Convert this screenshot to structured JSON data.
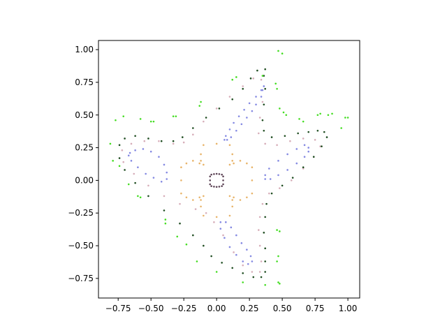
{
  "chart_data": {
    "type": "scatter",
    "title": "",
    "xlabel": "",
    "ylabel": "",
    "xlim": [
      -0.9,
      1.09
    ],
    "ylim": [
      -0.9,
      1.07
    ],
    "xticks": [
      -0.75,
      -0.5,
      -0.25,
      0.0,
      0.25,
      0.5,
      0.75,
      1.0
    ],
    "xtick_labels": [
      "−0.75",
      "−0.50",
      "−0.25",
      "0.00",
      "0.25",
      "0.50",
      "0.75",
      "1.00"
    ],
    "yticks": [
      -0.75,
      -0.5,
      -0.25,
      0.0,
      0.25,
      0.5,
      0.75,
      1.0
    ],
    "ytick_labels": [
      "−0.75",
      "−0.50",
      "−0.25",
      "0.00",
      "0.25",
      "0.50",
      "0.75",
      "1.00"
    ],
    "grid": false,
    "legend": "none",
    "series": [
      {
        "color": "#5c4355",
        "points": [
          [
            0.0,
            0.05
          ],
          [
            0.02,
            0.048
          ],
          [
            0.04,
            0.044
          ],
          [
            0.05,
            0.03
          ],
          [
            0.05,
            0.0
          ],
          [
            0.05,
            -0.03
          ],
          [
            0.04,
            -0.044
          ],
          [
            0.02,
            -0.048
          ],
          [
            0.0,
            -0.05
          ],
          [
            -0.02,
            -0.048
          ],
          [
            -0.04,
            -0.044
          ],
          [
            -0.05,
            -0.03
          ],
          [
            -0.05,
            0.0
          ],
          [
            -0.05,
            0.03
          ],
          [
            -0.04,
            0.044
          ],
          [
            -0.02,
            0.048
          ]
        ]
      },
      {
        "color": "#e8b46a",
        "points": [
          [
            -0.1,
            0.12
          ],
          [
            -0.13,
            0.13
          ],
          [
            -0.18,
            0.15
          ],
          [
            -0.23,
            0.13
          ],
          [
            -0.27,
            0.1
          ],
          [
            -0.27,
            0.0
          ],
          [
            -0.27,
            -0.1
          ],
          [
            -0.23,
            -0.13
          ],
          [
            -0.18,
            -0.15
          ],
          [
            -0.13,
            -0.13
          ],
          [
            -0.1,
            -0.12
          ],
          [
            -0.12,
            -0.15
          ],
          [
            -0.12,
            -0.2
          ],
          [
            -0.1,
            -0.27
          ],
          [
            0.0,
            -0.28
          ],
          [
            0.1,
            -0.27
          ],
          [
            0.12,
            -0.2
          ],
          [
            0.12,
            -0.15
          ],
          [
            0.1,
            -0.12
          ],
          [
            0.13,
            -0.13
          ],
          [
            0.18,
            -0.15
          ],
          [
            0.23,
            -0.13
          ],
          [
            0.27,
            -0.1
          ],
          [
            0.27,
            0.0
          ],
          [
            0.27,
            0.1
          ],
          [
            0.23,
            0.13
          ],
          [
            0.18,
            0.15
          ],
          [
            0.13,
            0.13
          ],
          [
            0.1,
            0.12
          ],
          [
            0.12,
            0.15
          ],
          [
            0.12,
            0.2
          ],
          [
            0.1,
            0.27
          ],
          [
            0.0,
            0.28
          ],
          [
            -0.1,
            0.27
          ],
          [
            -0.12,
            0.2
          ],
          [
            -0.12,
            0.15
          ]
        ]
      },
      {
        "color": "#8489e2",
        "points": [
          [
            0.36,
            0.72
          ],
          [
            0.34,
            0.69
          ],
          [
            0.3,
            0.64
          ],
          [
            0.25,
            0.59
          ],
          [
            0.21,
            0.54
          ],
          [
            0.17,
            0.49
          ],
          [
            0.13,
            0.44
          ],
          [
            0.1,
            0.39
          ],
          [
            0.07,
            0.34
          ],
          [
            0.06,
            0.31
          ],
          [
            0.08,
            0.31
          ],
          [
            0.11,
            0.33
          ],
          [
            0.15,
            0.38
          ],
          [
            0.19,
            0.43
          ],
          [
            0.23,
            0.48
          ],
          [
            0.27,
            0.53
          ],
          [
            0.3,
            0.58
          ],
          [
            0.34,
            0.64
          ],
          [
            0.35,
            0.69
          ],
          [
            0.36,
            0.72
          ],
          [
            -0.66,
            0.21
          ],
          [
            -0.62,
            0.23
          ],
          [
            -0.56,
            0.24
          ],
          [
            -0.5,
            0.22
          ],
          [
            -0.44,
            0.18
          ],
          [
            -0.4,
            0.12
          ],
          [
            -0.38,
            0.06
          ],
          [
            -0.38,
            0.01
          ],
          [
            -0.42,
            -0.01
          ],
          [
            -0.48,
            0.02
          ],
          [
            -0.54,
            0.05
          ],
          [
            -0.6,
            0.1
          ],
          [
            -0.65,
            0.15
          ],
          [
            -0.67,
            0.19
          ],
          [
            0.7,
            0.25
          ],
          [
            0.67,
            0.27
          ],
          [
            0.61,
            0.24
          ],
          [
            0.54,
            0.2
          ],
          [
            0.47,
            0.15
          ],
          [
            0.4,
            0.09
          ],
          [
            0.37,
            0.04
          ],
          [
            0.37,
            0.01
          ],
          [
            0.41,
            0.01
          ],
          [
            0.47,
            0.04
          ],
          [
            0.54,
            0.08
          ],
          [
            0.61,
            0.13
          ],
          [
            0.67,
            0.18
          ],
          [
            0.7,
            0.22
          ],
          [
            0.03,
            -0.32
          ],
          [
            0.07,
            -0.32
          ],
          [
            0.11,
            -0.36
          ],
          [
            0.15,
            -0.42
          ],
          [
            0.19,
            -0.48
          ],
          [
            0.23,
            -0.53
          ],
          [
            0.26,
            -0.58
          ],
          [
            0.27,
            -0.62
          ],
          [
            0.24,
            -0.64
          ],
          [
            0.2,
            -0.62
          ],
          [
            0.15,
            -0.57
          ],
          [
            0.1,
            -0.51
          ],
          [
            0.06,
            -0.44
          ],
          [
            0.03,
            -0.37
          ]
        ]
      },
      {
        "color": "#d7aeb9",
        "points": [
          [
            0.34,
            0.77
          ],
          [
            0.37,
            0.7
          ],
          [
            0.35,
            0.6
          ],
          [
            0.33,
            0.48
          ],
          [
            0.32,
            0.36
          ],
          [
            0.37,
            0.28
          ],
          [
            0.46,
            0.27
          ],
          [
            0.56,
            0.3
          ],
          [
            0.66,
            0.32
          ],
          [
            0.75,
            0.31
          ],
          [
            0.79,
            0.26
          ],
          [
            0.74,
            0.18
          ],
          [
            0.66,
            0.09
          ],
          [
            0.57,
            0.0
          ],
          [
            0.48,
            -0.06
          ],
          [
            0.4,
            -0.1
          ],
          [
            0.35,
            -0.18
          ],
          [
            0.33,
            -0.28
          ],
          [
            0.32,
            -0.38
          ],
          [
            0.33,
            -0.5
          ],
          [
            0.34,
            -0.62
          ],
          [
            0.33,
            -0.7
          ],
          [
            0.27,
            -0.7
          ],
          [
            0.2,
            -0.65
          ],
          [
            0.13,
            -0.55
          ],
          [
            0.05,
            -0.42
          ],
          [
            -0.02,
            -0.32
          ],
          [
            -0.08,
            -0.25
          ],
          [
            -0.16,
            -0.22
          ],
          [
            -0.28,
            -0.18
          ],
          [
            -0.4,
            -0.12
          ],
          [
            -0.52,
            -0.04
          ],
          [
            -0.63,
            0.05
          ],
          [
            -0.71,
            0.14
          ],
          [
            -0.72,
            0.23
          ],
          [
            -0.65,
            0.28
          ],
          [
            -0.55,
            0.3
          ],
          [
            -0.44,
            0.3
          ],
          [
            -0.33,
            0.28
          ],
          [
            -0.25,
            0.29
          ],
          [
            -0.18,
            0.35
          ],
          [
            -0.1,
            0.45
          ],
          [
            0.0,
            0.55
          ],
          [
            0.1,
            0.64
          ],
          [
            0.2,
            0.72
          ],
          [
            0.28,
            0.78
          ]
        ]
      },
      {
        "color": "#1f4d21",
        "points": [
          [
            0.37,
            0.85
          ],
          [
            0.36,
            0.8
          ],
          [
            0.37,
            0.7
          ],
          [
            0.36,
            0.58
          ],
          [
            0.35,
            0.46
          ],
          [
            0.36,
            0.38
          ],
          [
            0.42,
            0.33
          ],
          [
            0.52,
            0.34
          ],
          [
            0.62,
            0.36
          ],
          [
            0.7,
            0.37
          ],
          [
            0.77,
            0.38
          ],
          [
            0.82,
            0.37
          ],
          [
            0.84,
            0.33
          ],
          [
            0.8,
            0.26
          ],
          [
            0.74,
            0.18
          ],
          [
            0.66,
            0.1
          ],
          [
            0.58,
            0.02
          ],
          [
            0.5,
            -0.04
          ],
          [
            0.42,
            -0.1
          ],
          [
            0.38,
            -0.18
          ],
          [
            0.37,
            -0.28
          ],
          [
            0.36,
            -0.4
          ],
          [
            0.37,
            -0.52
          ],
          [
            0.37,
            -0.62
          ],
          [
            0.37,
            -0.7
          ],
          [
            0.34,
            -0.74
          ],
          [
            0.28,
            -0.74
          ],
          [
            0.2,
            -0.71
          ],
          [
            0.12,
            -0.67
          ],
          [
            0.04,
            -0.63
          ],
          [
            -0.04,
            -0.58
          ],
          [
            -0.1,
            -0.5
          ],
          [
            -0.18,
            -0.42
          ],
          [
            -0.28,
            -0.33
          ],
          [
            -0.4,
            -0.23
          ],
          [
            -0.52,
            -0.12
          ],
          [
            -0.62,
            -0.02
          ],
          [
            -0.7,
            0.08
          ],
          [
            -0.74,
            0.17
          ],
          [
            -0.74,
            0.27
          ],
          [
            -0.7,
            0.32
          ],
          [
            -0.62,
            0.34
          ],
          [
            -0.52,
            0.32
          ],
          [
            -0.42,
            0.3
          ],
          [
            -0.33,
            0.3
          ],
          [
            -0.26,
            0.33
          ],
          [
            -0.18,
            0.4
          ],
          [
            -0.08,
            0.48
          ],
          [
            0.02,
            0.55
          ],
          [
            0.12,
            0.62
          ],
          [
            0.2,
            0.7
          ],
          [
            0.26,
            0.78
          ],
          [
            0.31,
            0.84
          ]
        ]
      },
      {
        "color": "#44dd22",
        "points": [
          [
            0.47,
            0.99
          ],
          [
            0.5,
            0.97
          ],
          [
            0.35,
            0.8
          ],
          [
            0.45,
            0.74
          ],
          [
            0.46,
            0.7
          ],
          [
            0.15,
            0.79
          ],
          [
            0.12,
            0.77
          ],
          [
            -0.12,
            0.6
          ],
          [
            -0.13,
            0.57
          ],
          [
            -0.31,
            0.49
          ],
          [
            -0.33,
            0.49
          ],
          [
            -0.48,
            0.45
          ],
          [
            -0.5,
            0.45
          ],
          [
            -0.58,
            0.47
          ],
          [
            -0.71,
            0.49
          ],
          [
            -0.77,
            0.46
          ],
          [
            -0.81,
            0.28
          ],
          [
            -0.79,
            0.15
          ],
          [
            -0.74,
            0.11
          ],
          [
            -0.67,
            -0.03
          ],
          [
            -0.6,
            -0.12
          ],
          [
            -0.58,
            -0.13
          ],
          [
            -0.39,
            -0.3
          ],
          [
            -0.39,
            -0.33
          ],
          [
            -0.3,
            -0.43
          ],
          [
            -0.23,
            -0.49
          ],
          [
            0.48,
            0.55
          ],
          [
            0.51,
            0.52
          ],
          [
            0.53,
            0.5
          ],
          [
            0.63,
            0.47
          ],
          [
            0.66,
            0.45
          ],
          [
            0.77,
            0.5
          ],
          [
            0.79,
            0.51
          ],
          [
            0.85,
            0.5
          ],
          [
            0.88,
            0.51
          ],
          [
            0.95,
            0.4
          ],
          [
            0.98,
            0.48
          ],
          [
            1.0,
            0.48
          ],
          [
            0.46,
            -0.38
          ],
          [
            0.48,
            -0.39
          ],
          [
            0.47,
            -0.58
          ],
          [
            0.46,
            -0.62
          ],
          [
            0.47,
            -0.78
          ],
          [
            0.48,
            -0.79
          ],
          [
            0.37,
            -0.8
          ],
          [
            0.2,
            -0.78
          ],
          [
            0.0,
            -0.7
          ],
          [
            -0.15,
            -0.62
          ]
        ]
      }
    ]
  }
}
